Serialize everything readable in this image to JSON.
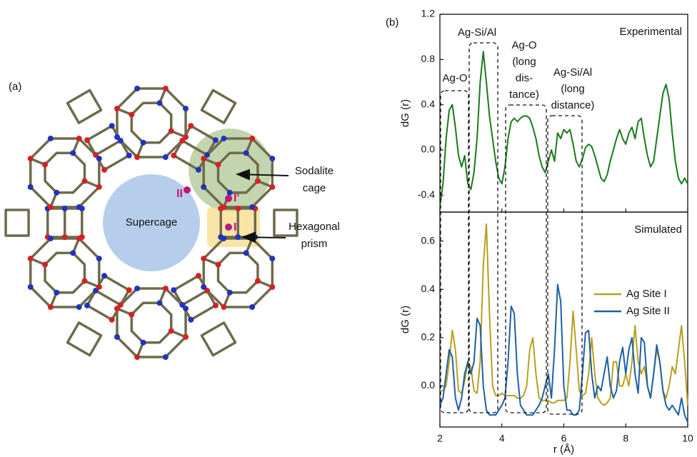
{
  "panel_labels": {
    "a": "(a)",
    "b": "(b)"
  },
  "diagram": {
    "supercage": "Supercage",
    "sodalite": [
      "Sodalite",
      "cage"
    ],
    "prism": [
      "Hexagonal",
      "prism"
    ],
    "sites": [
      "II",
      "I'",
      "I"
    ]
  },
  "chart_data": [
    {
      "type": "line",
      "ylabel": "dG (r)",
      "label": "Experimental",
      "xlim": [
        2,
        10
      ],
      "ylim": [
        -0.55,
        1.2
      ],
      "yticks": [
        -0.4,
        {
          "value": 0,
          "label": "0.0"
        },
        0.4,
        0.8,
        1.2
      ],
      "annotations": [
        [
          "Ag-O"
        ],
        [
          "Ag-Si/Al"
        ],
        [
          "Ag-O",
          "(long",
          "dis-",
          "tance)"
        ],
        [
          "Ag-Si/Al",
          "(long",
          "distance)"
        ]
      ],
      "x": [
        2.0,
        2.1,
        2.2,
        2.3,
        2.4,
        2.5,
        2.6,
        2.7,
        2.8,
        2.9,
        3.0,
        3.1,
        3.2,
        3.3,
        3.4,
        3.5,
        3.6,
        3.7,
        3.8,
        3.9,
        4.0,
        4.1,
        4.2,
        4.3,
        4.4,
        4.5,
        4.6,
        4.7,
        4.8,
        4.9,
        5.0,
        5.1,
        5.2,
        5.3,
        5.4,
        5.5,
        5.6,
        5.7,
        5.8,
        5.9,
        6.0,
        6.1,
        6.2,
        6.3,
        6.4,
        6.5,
        6.6,
        6.7,
        6.8,
        6.9,
        7.0,
        7.1,
        7.2,
        7.3,
        7.4,
        7.5,
        7.6,
        7.7,
        7.8,
        7.9,
        8.0,
        8.1,
        8.2,
        8.3,
        8.4,
        8.5,
        8.6,
        8.7,
        8.8,
        8.9,
        9.0,
        9.1,
        9.2,
        9.3,
        9.4,
        9.5,
        9.6,
        9.7,
        9.8,
        9.9,
        10.0
      ],
      "series": [
        {
          "color": "#1a7a1a",
          "values": [
            -0.5,
            -0.3,
            0.1,
            0.35,
            0.4,
            0.2,
            -0.05,
            -0.15,
            -0.05,
            -0.3,
            -0.35,
            -0.2,
            0.1,
            0.6,
            0.87,
            0.6,
            0.3,
            0.1,
            -0.1,
            -0.25,
            -0.3,
            -0.15,
            0.1,
            0.25,
            0.28,
            0.25,
            0.28,
            0.3,
            0.3,
            0.28,
            0.2,
            0.1,
            -0.05,
            -0.15,
            -0.2,
            -0.1,
            0.0,
            -0.1,
            0.15,
            0.1,
            0.18,
            0.15,
            0.18,
            0.05,
            -0.1,
            -0.15,
            -0.08,
            0.02,
            0.05,
            0.03,
            -0.05,
            -0.15,
            -0.25,
            -0.28,
            -0.22,
            -0.1,
            0.0,
            0.1,
            0.18,
            0.1,
            0.05,
            0.15,
            0.2,
            0.1,
            0.25,
            0.28,
            0.1,
            -0.05,
            -0.15,
            -0.1,
            0.1,
            0.3,
            0.5,
            0.58,
            0.45,
            0.15,
            -0.1,
            -0.25,
            -0.3,
            -0.25,
            -0.3
          ]
        }
      ]
    },
    {
      "type": "line",
      "ylabel": "dG (r)",
      "xlabel": "r (Å)",
      "label": "Simulated",
      "xlim": [
        2,
        10
      ],
      "xticks": [
        2,
        4,
        6,
        8,
        10
      ],
      "ylim": [
        -0.17,
        0.72
      ],
      "yticks": [
        {
          "value": 0,
          "label": "0.0"
        },
        0.2,
        0.4,
        0.6
      ],
      "x": [
        2.0,
        2.1,
        2.2,
        2.3,
        2.4,
        2.5,
        2.6,
        2.7,
        2.8,
        2.9,
        3.0,
        3.1,
        3.2,
        3.3,
        3.4,
        3.5,
        3.6,
        3.7,
        3.8,
        3.9,
        4.0,
        4.1,
        4.2,
        4.3,
        4.4,
        4.5,
        4.6,
        4.7,
        4.8,
        4.9,
        5.0,
        5.1,
        5.2,
        5.3,
        5.4,
        5.5,
        5.6,
        5.7,
        5.8,
        5.9,
        6.0,
        6.1,
        6.2,
        6.3,
        6.4,
        6.5,
        6.6,
        6.7,
        6.8,
        6.9,
        7.0,
        7.1,
        7.2,
        7.3,
        7.4,
        7.5,
        7.6,
        7.7,
        7.8,
        7.9,
        8.0,
        8.1,
        8.2,
        8.3,
        8.4,
        8.5,
        8.6,
        8.7,
        8.8,
        8.9,
        9.0,
        9.1,
        9.2,
        9.3,
        9.4,
        9.5,
        9.6,
        9.7,
        9.8,
        9.9,
        10.0
      ],
      "series": [
        {
          "name": "Ag Site I",
          "color": "#b8a01e",
          "values": [
            -0.02,
            -0.02,
            0.0,
            0.1,
            0.23,
            0.15,
            -0.02,
            -0.03,
            0.02,
            0.1,
            0.08,
            -0.02,
            -0.03,
            0.1,
            0.5,
            0.67,
            0.3,
            0.0,
            -0.04,
            -0.04,
            -0.03,
            -0.04,
            -0.04,
            -0.04,
            -0.04,
            -0.05,
            -0.05,
            -0.04,
            0.0,
            0.15,
            0.2,
            0.05,
            -0.05,
            -0.06,
            -0.06,
            -0.06,
            -0.07,
            -0.07,
            -0.06,
            -0.06,
            -0.06,
            -0.05,
            0.1,
            0.31,
            0.15,
            -0.02,
            -0.04,
            -0.03,
            0.05,
            0.2,
            0.05,
            -0.05,
            -0.07,
            -0.08,
            -0.07,
            -0.05,
            0.1,
            0.1,
            0.0,
            0.0,
            0.05,
            0.0,
            0.1,
            0.25,
            0.1,
            0.05,
            0.08,
            0.0,
            -0.05,
            0.05,
            0.15,
            0.1,
            -0.02,
            -0.05,
            0.0,
            0.08,
            0.05,
            0.15,
            0.25,
            0.1,
            -0.08
          ]
        },
        {
          "name": "Ag Site II",
          "color": "#1f5fa6",
          "values": [
            -0.08,
            -0.05,
            0.05,
            0.15,
            0.12,
            -0.05,
            -0.1,
            -0.05,
            0.05,
            0.1,
            0.05,
            0.1,
            0.28,
            0.25,
            0.0,
            -0.1,
            -0.12,
            -0.12,
            -0.12,
            -0.1,
            -0.08,
            -0.05,
            0.1,
            0.33,
            0.3,
            0.05,
            -0.08,
            -0.1,
            -0.12,
            -0.12,
            -0.12,
            -0.1,
            -0.08,
            -0.05,
            0.0,
            0.05,
            -0.05,
            0.15,
            0.42,
            0.35,
            0.0,
            -0.1,
            -0.1,
            -0.12,
            -0.12,
            -0.1,
            0.05,
            0.22,
            0.23,
            0.05,
            -0.05,
            0.0,
            -0.02,
            0.05,
            0.12,
            0.0,
            -0.05,
            -0.02,
            0.1,
            0.16,
            0.05,
            0.15,
            0.2,
            0.05,
            -0.03,
            0.2,
            0.18,
            0.0,
            -0.05,
            0.05,
            0.17,
            0.1,
            -0.02,
            -0.08,
            -0.1,
            -0.08,
            -0.1,
            -0.12,
            -0.05,
            -0.12,
            -0.15
          ]
        }
      ]
    }
  ]
}
